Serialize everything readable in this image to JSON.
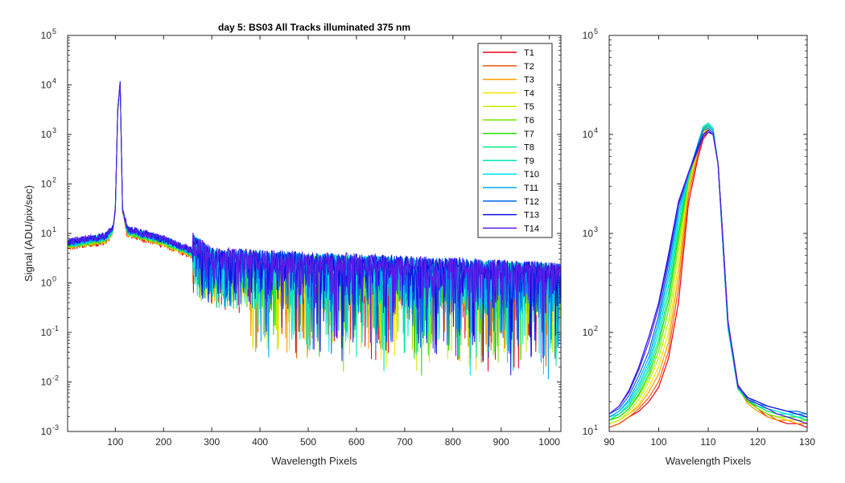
{
  "chart_data": [
    {
      "type": "line",
      "title": "day 5: BS03   All Tracks illuminated   375 nm",
      "xlabel": "Wavelength Pixels",
      "ylabel": "Signal (ADU/pix/sec)",
      "xlim": [
        1,
        1024
      ],
      "ylim": [
        0.001,
        100000
      ],
      "yscale": "log",
      "grid": false,
      "legend": "top-right",
      "xticks": [
        "100",
        "200",
        "300",
        "400",
        "500",
        "600",
        "700",
        "800",
        "900",
        "1000"
      ],
      "xtick_values": [
        100,
        200,
        300,
        400,
        500,
        600,
        700,
        800,
        900,
        1000
      ],
      "ytick_values": [
        0.001,
        0.01,
        0.1,
        1,
        10,
        100,
        1000,
        10000,
        100000
      ],
      "ytick_exps": [
        "-3",
        "-2",
        "-1",
        "0",
        "1",
        "2",
        "3",
        "4",
        "5"
      ],
      "series": [
        {
          "name": "T1",
          "color": "#e8001a"
        },
        {
          "name": "T2",
          "color": "#f25a0a"
        },
        {
          "name": "T3",
          "color": "#fa9a00"
        },
        {
          "name": "T4",
          "color": "#f5e100"
        },
        {
          "name": "T5",
          "color": "#bff000"
        },
        {
          "name": "T6",
          "color": "#7ae600"
        },
        {
          "name": "T7",
          "color": "#24e000"
        },
        {
          "name": "T8",
          "color": "#00e880"
        },
        {
          "name": "T9",
          "color": "#00e6b8"
        },
        {
          "name": "T10",
          "color": "#00e0e8"
        },
        {
          "name": "T11",
          "color": "#00a8f0"
        },
        {
          "name": "T12",
          "color": "#0066ea"
        },
        {
          "name": "T13",
          "color": "#1010e6"
        },
        {
          "name": "T14",
          "color": "#5b1de6"
        }
      ],
      "profile": [
        {
          "x": 1,
          "y": 6
        },
        {
          "x": 80,
          "y": 8
        },
        {
          "x": 95,
          "y": 12
        },
        {
          "x": 100,
          "y": 30
        },
        {
          "x": 105,
          "y": 3000
        },
        {
          "x": 110,
          "y": 11000
        },
        {
          "x": 115,
          "y": 30
        },
        {
          "x": 125,
          "y": 11
        },
        {
          "x": 200,
          "y": 7
        },
        {
          "x": 260,
          "y": 4
        },
        {
          "x": 300,
          "y": 2
        },
        {
          "x": 1024,
          "y": 1
        }
      ]
    },
    {
      "type": "line",
      "xlabel": "Wavelength Pixels",
      "xlim": [
        90,
        130
      ],
      "ylim": [
        10,
        100000
      ],
      "yscale": "log",
      "grid": false,
      "xticks": [
        "90",
        "100",
        "110",
        "120",
        "130"
      ],
      "xtick_values": [
        90,
        100,
        110,
        120,
        130
      ],
      "ytick_values": [
        10,
        100,
        1000,
        10000,
        100000
      ],
      "ytick_exps": [
        "1",
        "2",
        "3",
        "4",
        "5"
      ],
      "x": [
        90,
        92,
        94,
        96,
        98,
        100,
        102,
        104,
        106,
        108,
        109,
        110,
        111,
        112,
        113,
        114,
        116,
        118,
        120,
        122,
        124,
        126,
        128,
        130
      ],
      "series": [
        {
          "name": "T1",
          "color": "#e8001a",
          "values": [
            11,
            12,
            14,
            16,
            20,
            28,
            55,
            200,
            2000,
            6000,
            9000,
            10500,
            10000,
            5000,
            800,
            130,
            30,
            21,
            17,
            14,
            13,
            12,
            12,
            11
          ]
        },
        {
          "name": "T2",
          "color": "#f25a0a",
          "values": [
            11,
            12,
            14,
            17,
            22,
            32,
            65,
            280,
            2400,
            6500,
            9500,
            11000,
            10000,
            5000,
            800,
            130,
            30,
            20,
            17,
            15,
            13,
            13,
            12,
            12
          ]
        },
        {
          "name": "T3",
          "color": "#fa9a00",
          "values": [
            12,
            13,
            15,
            18,
            25,
            38,
            80,
            380,
            2800,
            7000,
            10000,
            11500,
            10500,
            5000,
            800,
            120,
            28,
            19,
            16,
            14,
            13,
            13,
            12,
            12
          ]
        },
        {
          "name": "T4",
          "color": "#f5e100",
          "values": [
            12,
            13,
            15,
            19,
            28,
            45,
            100,
            500,
            3000,
            7200,
            10500,
            11500,
            10500,
            5000,
            750,
            120,
            28,
            20,
            17,
            15,
            14,
            13,
            13,
            12
          ]
        },
        {
          "name": "T5",
          "color": "#bff000",
          "values": [
            12,
            13,
            16,
            21,
            32,
            55,
            130,
            650,
            3200,
            7500,
            11000,
            12000,
            11000,
            5000,
            750,
            120,
            28,
            20,
            17,
            15,
            14,
            14,
            13,
            13
          ]
        },
        {
          "name": "T6",
          "color": "#7ae600",
          "values": [
            13,
            14,
            17,
            23,
            35,
            65,
            170,
            800,
            3400,
            7800,
            11000,
            12500,
            11000,
            5000,
            700,
            115,
            27,
            20,
            17,
            15,
            14,
            14,
            13,
            13
          ]
        },
        {
          "name": "T7",
          "color": "#24e000",
          "values": [
            13,
            14,
            17,
            24,
            38,
            75,
            210,
            950,
            3500,
            8000,
            11500,
            12500,
            11000,
            5000,
            700,
            110,
            27,
            20,
            18,
            16,
            15,
            14,
            14,
            13
          ]
        },
        {
          "name": "T8",
          "color": "#00e880",
          "values": [
            13,
            15,
            18,
            26,
            42,
            85,
            250,
            1100,
            3600,
            8200,
            12000,
            13000,
            11500,
            5000,
            700,
            110,
            27,
            21,
            18,
            16,
            15,
            15,
            14,
            13
          ]
        },
        {
          "name": "T9",
          "color": "#00e6b8",
          "values": [
            14,
            15,
            19,
            28,
            46,
            100,
            300,
            1300,
            3700,
            8300,
            12000,
            13000,
            11500,
            5000,
            700,
            110,
            27,
            21,
            18,
            17,
            16,
            15,
            14,
            14
          ]
        },
        {
          "name": "T10",
          "color": "#00e0e8",
          "values": [
            14,
            16,
            20,
            30,
            50,
            115,
            360,
            1500,
            3800,
            8400,
            12000,
            12500,
            11000,
            5000,
            700,
            115,
            28,
            21,
            19,
            17,
            16,
            15,
            15,
            14
          ]
        },
        {
          "name": "T11",
          "color": "#00a8f0",
          "values": [
            14,
            16,
            21,
            33,
            56,
            130,
            420,
            1700,
            3900,
            8300,
            11500,
            12000,
            11000,
            5000,
            750,
            120,
            28,
            22,
            19,
            18,
            17,
            16,
            15,
            15
          ]
        },
        {
          "name": "T12",
          "color": "#0066ea",
          "values": [
            15,
            17,
            23,
            37,
            64,
            150,
            500,
            1900,
            4000,
            8000,
            11000,
            11500,
            10500,
            5000,
            800,
            125,
            28,
            22,
            20,
            18,
            17,
            16,
            16,
            15
          ]
        },
        {
          "name": "T13",
          "color": "#1010e6",
          "values": [
            15,
            18,
            26,
            45,
            90,
            200,
            620,
            2100,
            4100,
            7500,
            10000,
            11000,
            10000,
            5000,
            850,
            130,
            29,
            22,
            20,
            18,
            17,
            16,
            15,
            14
          ]
        },
        {
          "name": "T14",
          "color": "#5b1de6",
          "values": [
            15,
            18,
            25,
            42,
            80,
            180,
            560,
            2000,
            4000,
            7000,
            9500,
            10500,
            10000,
            5000,
            800,
            130,
            29,
            21,
            19,
            17,
            15,
            14,
            13,
            12
          ]
        }
      ]
    }
  ]
}
